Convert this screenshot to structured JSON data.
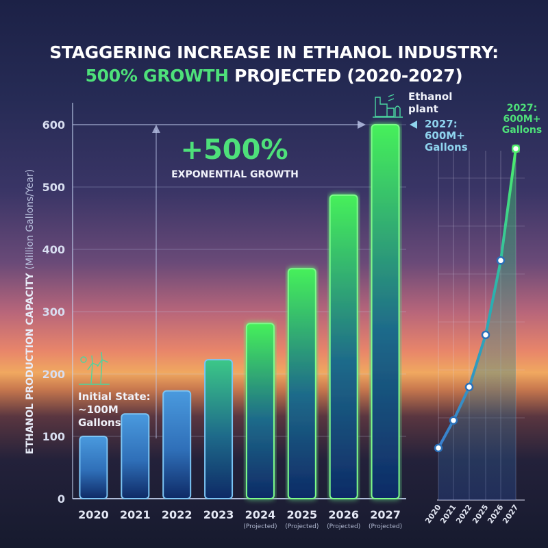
{
  "title": {
    "line1": "STAGGERING INCREASE IN ETHANOL INDUSTRY:",
    "line2_highlight": "500% GROWTH",
    "line2_rest": " PROJECTED (2020-2027)"
  },
  "colors": {
    "accent_green": "#4ee07a",
    "bar_blue": "#3f8fd6",
    "label_cyan": "#8fd4ee"
  },
  "chart_data": [
    {
      "type": "bar",
      "ylabel_bold": "ETHANOL PRODUCTION CAPACITY",
      "ylabel_rest": "(Million Gallons/Year)",
      "ylim": [
        0,
        600
      ],
      "yticks": [
        0,
        100,
        200,
        300,
        400,
        500,
        600
      ],
      "grid": true,
      "categories": [
        "2020",
        "2021",
        "2022",
        "2023",
        "2024",
        "2025",
        "2026",
        "2027"
      ],
      "sublabels": [
        "",
        "",
        "",
        "",
        "(Projected)",
        "(Projected)",
        "(Projected)",
        "(Projected)"
      ],
      "values": [
        100,
        136,
        173,
        223,
        281,
        369,
        487,
        600
      ],
      "annotations": {
        "growth_pct": "+500%",
        "growth_text": "EXPONENTIAL GROWTH",
        "initial_state": [
          "Initial State:",
          "~100M",
          "Gallons"
        ],
        "plant": [
          "Ethanol",
          "plant"
        ],
        "final": [
          "2027:",
          "600M+",
          "Gallons"
        ]
      },
      "icons": [
        "wind-turbine-icon",
        "ethanol-plant-icon"
      ]
    },
    {
      "type": "line",
      "categories": [
        "2020",
        "2021",
        "2022",
        "2025",
        "2026",
        "2027"
      ],
      "values": [
        89,
        136,
        193,
        282,
        409,
        600
      ],
      "grid": true,
      "annotation": [
        "2027:",
        "600M+",
        "Gallons"
      ]
    }
  ]
}
